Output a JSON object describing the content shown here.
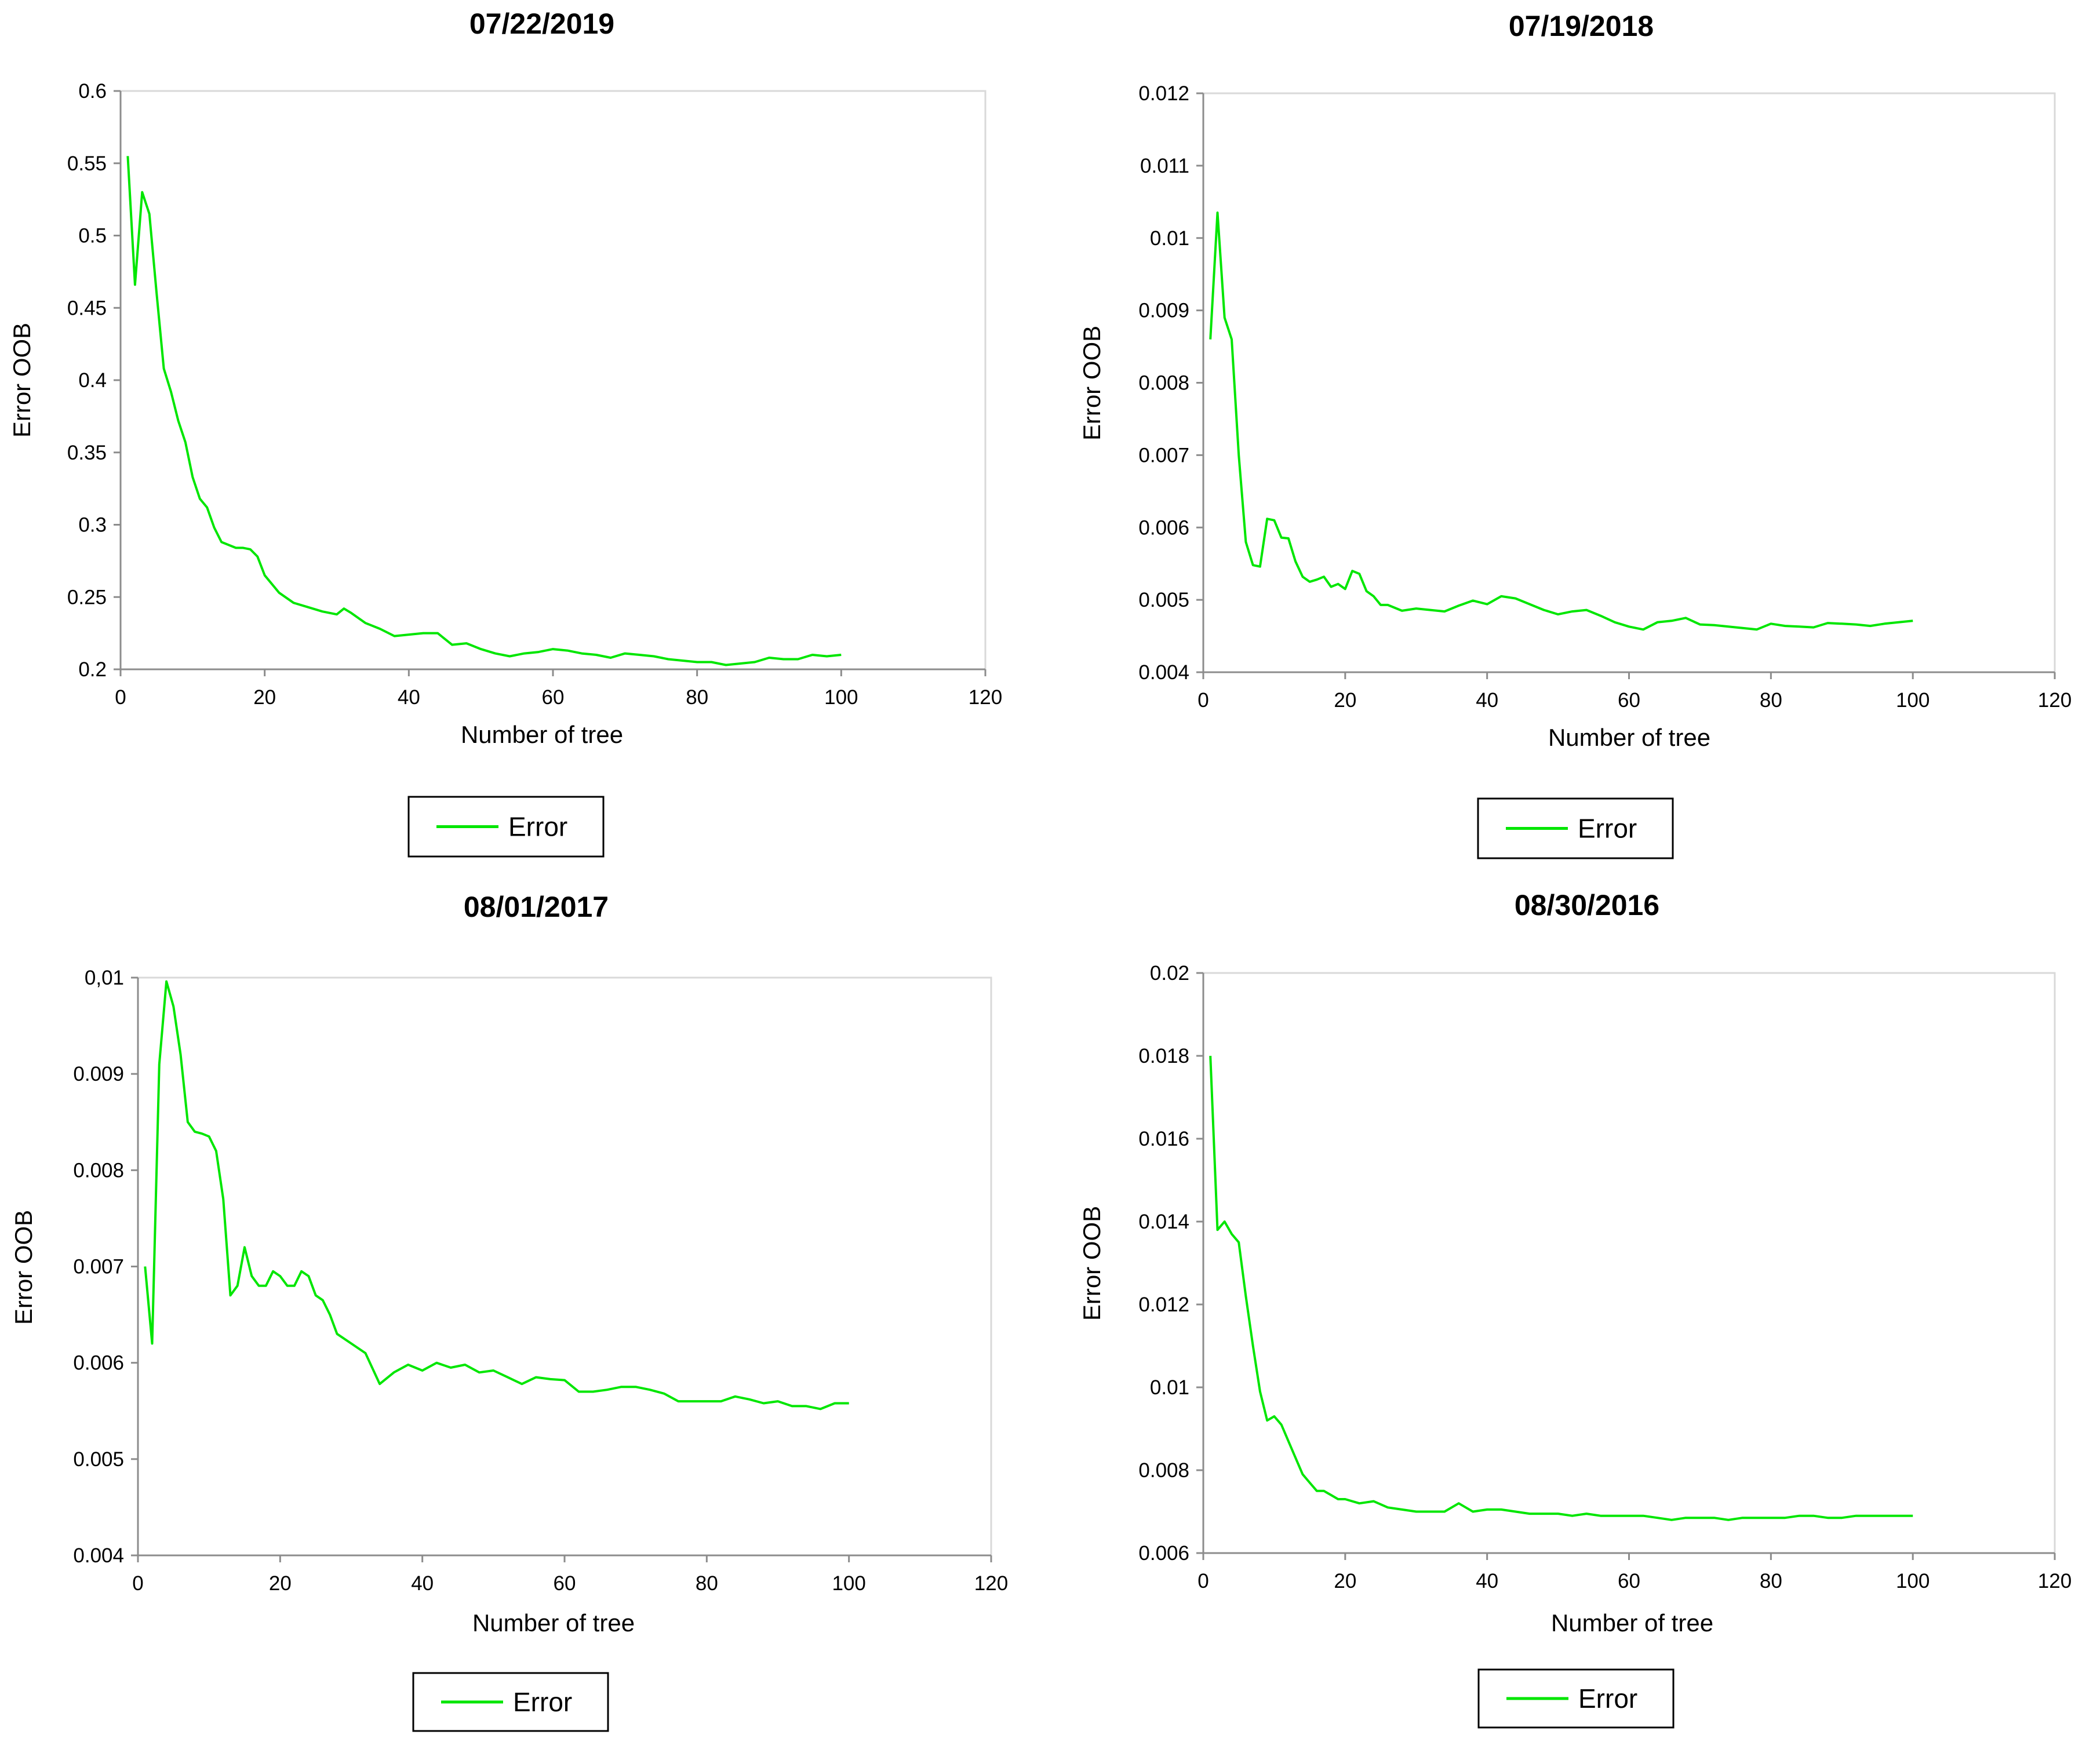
{
  "chart_data": [
    {
      "type": "line",
      "title": "07/22/2019",
      "xlabel": "Number of tree",
      "ylabel": "Error OOB",
      "xlim": [
        0,
        120
      ],
      "xticks": [
        "0",
        "20",
        "40",
        "60",
        "80",
        "100",
        "120"
      ],
      "ylim": [
        0.2,
        0.6
      ],
      "yticks": [
        "0.2",
        "0.25",
        "0.3",
        "0.35",
        "0.4",
        "0.45",
        "0.5",
        "0.55",
        "0.6"
      ],
      "legend": [
        "Error"
      ],
      "color": "#00e600",
      "series": [
        {
          "name": "Error",
          "x": [
            1,
            2,
            3,
            4,
            5,
            6,
            7,
            8,
            9,
            10,
            11,
            12,
            13,
            14,
            15,
            16,
            17,
            18,
            19,
            20,
            22,
            24,
            26,
            28,
            30,
            31,
            32,
            34,
            36,
            38,
            40,
            42,
            44,
            46,
            48,
            50,
            52,
            54,
            56,
            58,
            60,
            62,
            64,
            66,
            68,
            70,
            72,
            74,
            76,
            78,
            80,
            82,
            84,
            86,
            88,
            90,
            92,
            94,
            96,
            98,
            100
          ],
          "y": [
            0.555,
            0.466,
            0.53,
            0.515,
            0.46,
            0.408,
            0.392,
            0.372,
            0.357,
            0.333,
            0.318,
            0.312,
            0.298,
            0.288,
            0.286,
            0.284,
            0.284,
            0.283,
            0.278,
            0.265,
            0.253,
            0.246,
            0.243,
            0.24,
            0.238,
            0.242,
            0.239,
            0.232,
            0.228,
            0.223,
            0.224,
            0.225,
            0.225,
            0.217,
            0.218,
            0.214,
            0.211,
            0.209,
            0.211,
            0.212,
            0.214,
            0.213,
            0.211,
            0.21,
            0.208,
            0.211,
            0.21,
            0.209,
            0.207,
            0.206,
            0.205,
            0.205,
            0.203,
            0.204,
            0.205,
            0.208,
            0.207,
            0.207,
            0.21,
            0.209,
            0.21
          ]
        }
      ]
    },
    {
      "type": "line",
      "title": "07/19/2018",
      "xlabel": "Number of tree",
      "ylabel": "Error OOB",
      "xlim": [
        0,
        120
      ],
      "xticks": [
        "0",
        "20",
        "40",
        "60",
        "80",
        "100",
        "120"
      ],
      "ylim": [
        0.004,
        0.012
      ],
      "yticks": [
        "0.004",
        "0.005",
        "0.006",
        "0.007",
        "0.008",
        "0.009",
        "0.01",
        "0.011",
        "0.012"
      ],
      "legend": [
        "Error"
      ],
      "color": "#00e600",
      "series": [
        {
          "name": "Error",
          "x": [
            1,
            2,
            3,
            4,
            5,
            6,
            7,
            8,
            9,
            10,
            11,
            12,
            13,
            14,
            15,
            16,
            17,
            18,
            19,
            20,
            21,
            22,
            23,
            24,
            25,
            26,
            28,
            30,
            32,
            34,
            36,
            38,
            40,
            42,
            44,
            46,
            48,
            50,
            52,
            54,
            56,
            58,
            60,
            62,
            64,
            66,
            68,
            70,
            72,
            74,
            76,
            78,
            80,
            82,
            84,
            86,
            88,
            90,
            92,
            94,
            96,
            98,
            100
          ],
          "y": [
            0.0086,
            0.01035,
            0.0089,
            0.0086,
            0.007,
            0.0058,
            0.00548,
            0.00546,
            0.00612,
            0.0061,
            0.00586,
            0.00585,
            0.00553,
            0.00532,
            0.00525,
            0.00528,
            0.00532,
            0.00518,
            0.00522,
            0.00515,
            0.0054,
            0.00536,
            0.00512,
            0.00505,
            0.00493,
            0.00493,
            0.00485,
            0.00488,
            0.00486,
            0.00484,
            0.00492,
            0.00499,
            0.00494,
            0.00505,
            0.00502,
            0.00494,
            0.00486,
            0.0048,
            0.00484,
            0.00486,
            0.00478,
            0.00469,
            0.00463,
            0.00459,
            0.00469,
            0.00471,
            0.00475,
            0.00466,
            0.00465,
            0.00463,
            0.00461,
            0.00459,
            0.00467,
            0.00464,
            0.00463,
            0.00462,
            0.00468,
            0.00467,
            0.00466,
            0.00464,
            0.00467,
            0.00469,
            0.00471
          ]
        }
      ]
    },
    {
      "type": "line",
      "title": "08/01/2017",
      "xlabel": "Number of tree",
      "ylabel": "Error OOB",
      "xlim": [
        0,
        120
      ],
      "xticks": [
        "0",
        "20",
        "40",
        "60",
        "80",
        "100",
        "120"
      ],
      "ylim": [
        0.004,
        0.01
      ],
      "yticks": [
        "0.004",
        "0.005",
        "0.006",
        "0.007",
        "0.008",
        "0.009",
        "0,01"
      ],
      "legend": [
        "Error"
      ],
      "color": "#00e600",
      "series": [
        {
          "name": "Error",
          "x": [
            1,
            2,
            3,
            4,
            5,
            6,
            7,
            8,
            9,
            10,
            11,
            12,
            13,
            14,
            15,
            16,
            17,
            18,
            19,
            20,
            21,
            22,
            23,
            24,
            25,
            26,
            27,
            28,
            30,
            32,
            34,
            36,
            38,
            40,
            42,
            44,
            46,
            48,
            50,
            52,
            54,
            56,
            58,
            60,
            62,
            64,
            66,
            68,
            70,
            72,
            74,
            76,
            78,
            80,
            82,
            84,
            86,
            88,
            90,
            92,
            94,
            96,
            98,
            100
          ],
          "y": [
            0.007,
            0.0062,
            0.0091,
            0.00996,
            0.0097,
            0.0092,
            0.0085,
            0.0084,
            0.00838,
            0.00835,
            0.0082,
            0.0077,
            0.0067,
            0.0068,
            0.0072,
            0.0069,
            0.0068,
            0.0068,
            0.00695,
            0.0069,
            0.0068,
            0.0068,
            0.00695,
            0.0069,
            0.0067,
            0.00665,
            0.0065,
            0.0063,
            0.0062,
            0.0061,
            0.00578,
            0.0059,
            0.00598,
            0.00592,
            0.006,
            0.00595,
            0.00598,
            0.0059,
            0.00592,
            0.00585,
            0.00578,
            0.00585,
            0.00583,
            0.00582,
            0.0057,
            0.0057,
            0.00572,
            0.00575,
            0.00575,
            0.00572,
            0.00568,
            0.0056,
            0.0056,
            0.0056,
            0.0056,
            0.00565,
            0.00562,
            0.00558,
            0.0056,
            0.00555,
            0.00555,
            0.00552,
            0.00558,
            0.00558
          ]
        }
      ]
    },
    {
      "type": "line",
      "title": "08/30/2016",
      "xlabel": "Number of tree",
      "ylabel": "Error OOB",
      "xlim": [
        0,
        120
      ],
      "xticks": [
        "0",
        "20",
        "40",
        "60",
        "80",
        "100",
        "120"
      ],
      "ylim": [
        0.006,
        0.02
      ],
      "yticks": [
        "0.006",
        "0.008",
        "0.01",
        "0.012",
        "0.014",
        "0.016",
        "0.018",
        "0.02"
      ],
      "legend": [
        "Error"
      ],
      "color": "#00e600",
      "series": [
        {
          "name": "Error",
          "x": [
            1,
            2,
            3,
            4,
            5,
            6,
            7,
            8,
            9,
            10,
            11,
            12,
            13,
            14,
            15,
            16,
            17,
            18,
            19,
            20,
            22,
            24,
            26,
            28,
            30,
            32,
            34,
            36,
            38,
            40,
            42,
            44,
            46,
            48,
            50,
            52,
            54,
            56,
            58,
            60,
            62,
            64,
            66,
            68,
            70,
            72,
            74,
            76,
            78,
            80,
            82,
            84,
            86,
            88,
            90,
            92,
            94,
            96,
            98,
            100
          ],
          "y": [
            0.018,
            0.0138,
            0.014,
            0.0137,
            0.0135,
            0.0122,
            0.011,
            0.0099,
            0.0092,
            0.0093,
            0.0091,
            0.0087,
            0.0083,
            0.0079,
            0.0077,
            0.0075,
            0.0075,
            0.0074,
            0.0073,
            0.0073,
            0.0072,
            0.00725,
            0.0071,
            0.00705,
            0.007,
            0.007,
            0.007,
            0.0072,
            0.007,
            0.00705,
            0.00705,
            0.007,
            0.00695,
            0.00695,
            0.00695,
            0.0069,
            0.00695,
            0.0069,
            0.0069,
            0.0069,
            0.0069,
            0.00685,
            0.0068,
            0.00685,
            0.00685,
            0.00685,
            0.0068,
            0.00685,
            0.00685,
            0.00685,
            0.00685,
            0.0069,
            0.0069,
            0.00685,
            0.00685,
            0.0069,
            0.0069,
            0.0069,
            0.0069,
            0.0069
          ]
        }
      ]
    }
  ]
}
